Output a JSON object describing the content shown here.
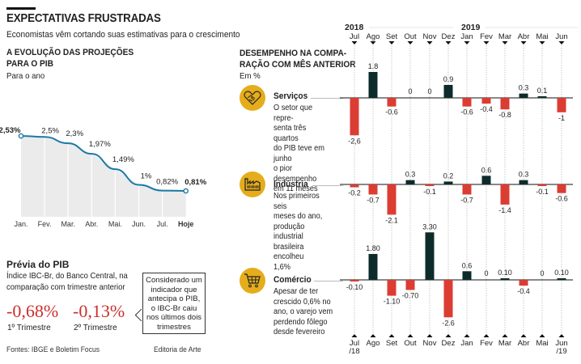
{
  "header": {
    "title": "EXPECTATIVAS FRUSTRADAS",
    "subtitle": "Economistas vêm cortando suas estimativas para o crescimento"
  },
  "colors": {
    "positive": "#0e2b2b",
    "negative": "#db3d33",
    "line": "#1a7aa6",
    "area": "#ebebeb",
    "icon_bg": "#e5ad1b",
    "highlight_red": "#c9302c"
  },
  "projections": {
    "title_line1": "A EVOLUÇÃO DAS PROJEÇÕES",
    "title_line2": "PARA O PIB",
    "unit": "Para o ano"
  },
  "previa": {
    "title": "Prévia do PIB",
    "desc_line1": "Índice IBC-Br, do Banco Central, na",
    "desc_line2": "comparação com trimestre anterior",
    "q1_value": "-0,68%",
    "q1_label": "1º Trimestre",
    "q2_value": "-0,13%",
    "q2_label": "2º Trimestre",
    "callout": "Considerado um indicador que antecipa o PIB, o IBC-Br caiu nos últimos dois trimestres"
  },
  "footer": {
    "sources": "Fontes: IBGE e Boletim Focus",
    "credit": "Editoria de Arte"
  },
  "performance": {
    "title_line1": "DESEMPENHO NA COMPA-",
    "title_line2": "RAÇÃO COM MÊS ANTERIOR",
    "unit": "Em %",
    "year_2018": "2018",
    "year_2019": "2019",
    "bottom_first_sub": "/18",
    "bottom_last_sub": "/19",
    "sectors": [
      {
        "name": "Serviços",
        "icon": "handshake-heart-icon",
        "desc": [
          "O setor que repre-",
          "senta três quartos",
          "do PIB teve em junho",
          "o pior desempenho",
          "em 11 meses"
        ]
      },
      {
        "name": "Indústria",
        "icon": "factory-icon",
        "desc": [
          "Nos primeiros seis",
          "meses do ano,",
          "produção industrial",
          "brasileira encolheu",
          "1,6%"
        ]
      },
      {
        "name": "Comércio",
        "icon": "shopping-cart-icon",
        "desc": [
          "Apesar de ter",
          "crescido 0,6% no",
          "ano, o varejo vem",
          "perdendo fôlego",
          "desde fevereiro"
        ]
      }
    ]
  },
  "chart_data": [
    {
      "type": "area",
      "title": "A EVOLUÇÃO DAS PROJEÇÕES PARA O PIB",
      "subtitle": "Para o ano",
      "categories": [
        "Jan.",
        "Fev.",
        "Mar.",
        "Abr.",
        "Mai.",
        "Jun.",
        "Jul.",
        "Hoje"
      ],
      "values": [
        2.53,
        2.5,
        2.3,
        1.97,
        1.49,
        1.0,
        0.82,
        0.81
      ],
      "labels": [
        "2,53%",
        "2,5%",
        "2,3%",
        "1,97%",
        "1,49%",
        "1%",
        "0,82%",
        "0,81%"
      ],
      "bold_labels": [
        0,
        7
      ],
      "ylim": [
        0,
        2.6
      ],
      "grid": false
    },
    {
      "type": "bar",
      "title": "DESEMPENHO NA COMPARAÇÃO COM MÊS ANTERIOR",
      "ylabel": "Em %",
      "categories": [
        "Jul",
        "Ago",
        "Set",
        "Out",
        "Nov",
        "Dez",
        "Jan",
        "Fev",
        "Mar",
        "Abr",
        "Mai",
        "Jun"
      ],
      "series": [
        {
          "name": "Serviços",
          "values": [
            -2.6,
            1.8,
            -0.6,
            0,
            0,
            0.9,
            -0.6,
            -0.4,
            -0.8,
            0.3,
            0.1,
            -1
          ],
          "labels": [
            "-2,6",
            "1.8",
            "-0.6",
            "0",
            "0",
            "0.9",
            "-0.6",
            "-0.4",
            "-0.8",
            "0.3",
            "0.1",
            "-1"
          ]
        },
        {
          "name": "Indústria",
          "values": [
            -0.2,
            -0.7,
            -2.1,
            0.3,
            -0.1,
            0.2,
            -0.7,
            0.6,
            -1.4,
            0.3,
            -0.1,
            -0.6
          ],
          "labels": [
            "-0.2",
            "-0.7",
            "-2.1",
            "0.3",
            "-0.1",
            "0.2",
            "-0.7",
            "0.6",
            "-1.4",
            "0.3",
            "-0.1",
            "-0.6"
          ]
        },
        {
          "name": "Comércio",
          "values": [
            -0.1,
            1.8,
            -1.1,
            -0.7,
            3.3,
            -2.6,
            0.6,
            0,
            0.1,
            -0.4,
            0,
            0.1
          ],
          "labels": [
            "-0.10",
            "1.80",
            "-1.10",
            "-0.70",
            "3.30",
            "-2.6",
            "0.6",
            "0",
            "0.10",
            "-0.4",
            "0",
            "0.10"
          ]
        }
      ]
    }
  ]
}
